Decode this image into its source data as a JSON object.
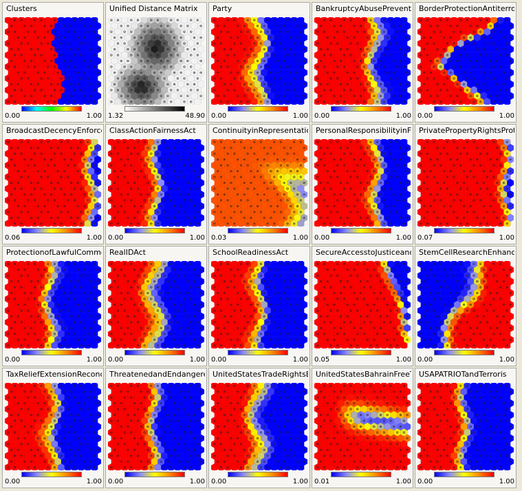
{
  "palettes": {
    "cluster": [
      "#0000ff",
      "#00ffff",
      "#00ff00",
      "#ffff00",
      "#ff0000"
    ],
    "distance": [
      "#ffffff",
      "#000000"
    ],
    "vote": [
      "#0000ff",
      "#8888ff",
      "#ffff00",
      "#ff8800",
      "#ff0000"
    ]
  },
  "panels": [
    {
      "title": "Clusters",
      "min": "0.00",
      "max": "1.00",
      "palette": "cluster",
      "pattern": "clusters"
    },
    {
      "title": "Unified Distance Matrix",
      "min": "1.32",
      "max": "48.90",
      "palette": "distance",
      "pattern": "umatrix"
    },
    {
      "title": "Party",
      "min": "0.00",
      "max": "1.00",
      "palette": "vote",
      "pattern": "split"
    },
    {
      "title": "BankruptcyAbusePreventi",
      "min": "0.00",
      "max": "1.00",
      "palette": "vote",
      "pattern": "split-right"
    },
    {
      "title": "BorderProtectionAntiterrori",
      "min": "0.00",
      "max": "1.00",
      "palette": "vote",
      "pattern": "wedge"
    },
    {
      "title": "BroadcastDecencyEnforce",
      "min": "0.06",
      "max": "1.00",
      "palette": "vote",
      "pattern": "mostly-red"
    },
    {
      "title": "ClassActionFairnessAct",
      "min": "0.00",
      "max": "1.00",
      "palette": "vote",
      "pattern": "split"
    },
    {
      "title": "ContinuityinRepresentation",
      "min": "0.03",
      "max": "1.00",
      "palette": "vote",
      "pattern": "mixed"
    },
    {
      "title": "PersonalResponsibilityinF",
      "min": "0.00",
      "max": "1.00",
      "palette": "vote",
      "pattern": "split-right"
    },
    {
      "title": "PrivatePropertyRightsProt",
      "min": "0.07",
      "max": "1.00",
      "palette": "vote",
      "pattern": "mostly-red"
    },
    {
      "title": "ProtectionofLawfulComme",
      "min": "0.00",
      "max": "1.00",
      "palette": "vote",
      "pattern": "split"
    },
    {
      "title": "RealIDAct",
      "min": "0.00",
      "max": "1.00",
      "palette": "vote",
      "pattern": "split"
    },
    {
      "title": "SchoolReadinessAct",
      "min": "0.00",
      "max": "1.00",
      "palette": "vote",
      "pattern": "split"
    },
    {
      "title": "SecureAccesstoJusticeand",
      "min": "0.05",
      "max": "1.00",
      "palette": "vote",
      "pattern": "mostly-red-corner"
    },
    {
      "title": "StemCellResearchEnhanc",
      "min": "0.00",
      "max": "1.00",
      "palette": "vote",
      "pattern": "inverse"
    },
    {
      "title": "TaxReliefExtensionReconc",
      "min": "0.00",
      "max": "1.00",
      "palette": "vote",
      "pattern": "split"
    },
    {
      "title": "ThreatenedandEndangere",
      "min": "0.00",
      "max": "1.00",
      "palette": "vote",
      "pattern": "split"
    },
    {
      "title": "UnitedStatesTradeRightsE",
      "min": "0.00",
      "max": "1.00",
      "palette": "vote",
      "pattern": "split"
    },
    {
      "title": "UnitedStatesBahrainFreeT",
      "min": "0.01",
      "max": "1.00",
      "palette": "vote",
      "pattern": "band"
    },
    {
      "title": "USAPATRIOTandTerroris",
      "min": "0.00",
      "max": "1.00",
      "palette": "vote",
      "pattern": "split"
    }
  ]
}
